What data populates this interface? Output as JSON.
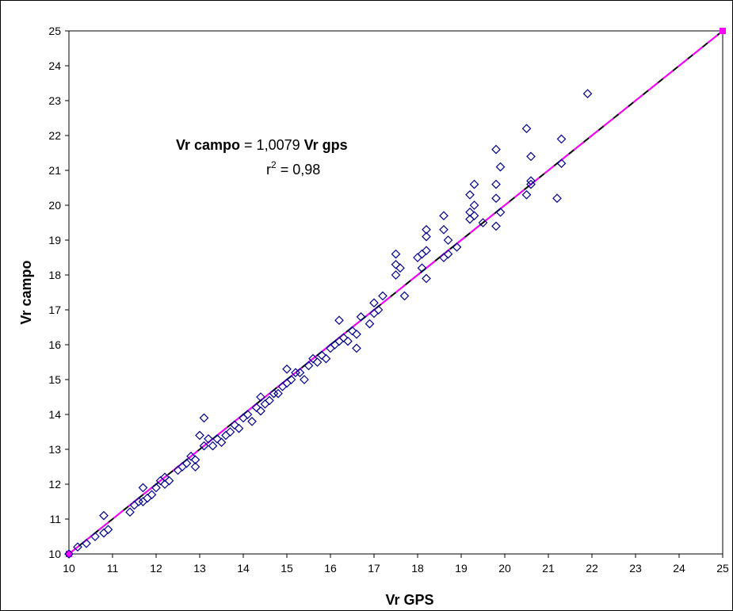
{
  "chart_data": {
    "type": "scatter",
    "xlabel": "Vr GPS",
    "ylabel": "Vr campo",
    "xlim": [
      10,
      25
    ],
    "ylim": [
      10,
      25
    ],
    "xticks": [
      10,
      11,
      12,
      13,
      14,
      15,
      16,
      17,
      18,
      19,
      20,
      21,
      22,
      23,
      24,
      25
    ],
    "yticks": [
      10,
      11,
      12,
      13,
      14,
      15,
      16,
      17,
      18,
      19,
      20,
      21,
      22,
      23,
      24,
      25
    ],
    "grid": false,
    "legend": "none",
    "annotation": {
      "line1_bold_a": "Vr campo",
      "line1_mid": " = 1,0079 ",
      "line1_bold_b": "Vr gps",
      "line2_r": "r",
      "line2_sup": "2",
      "line2_rest": " = 0,98"
    },
    "lines": [
      {
        "kind": "1:1",
        "x": [
          10,
          25
        ],
        "y": [
          10,
          25
        ],
        "color": "#000000",
        "style": "solid"
      },
      {
        "kind": "regression",
        "x": [
          10,
          25
        ],
        "y": [
          10,
          25
        ],
        "color": "#ff00ff",
        "style": "dashed",
        "markers": true
      }
    ],
    "marker_color": "#00008b",
    "points": [
      [
        10.0,
        10.0
      ],
      [
        10.2,
        10.2
      ],
      [
        10.4,
        10.3
      ],
      [
        10.6,
        10.5
      ],
      [
        10.8,
        10.6
      ],
      [
        10.8,
        11.1
      ],
      [
        10.9,
        10.7
      ],
      [
        11.4,
        11.2
      ],
      [
        11.5,
        11.4
      ],
      [
        11.6,
        11.5
      ],
      [
        11.7,
        11.9
      ],
      [
        11.7,
        11.5
      ],
      [
        11.8,
        11.6
      ],
      [
        11.9,
        11.7
      ],
      [
        12.0,
        11.9
      ],
      [
        12.1,
        12.1
      ],
      [
        12.2,
        12.2
      ],
      [
        12.2,
        12.0
      ],
      [
        12.3,
        12.1
      ],
      [
        12.5,
        12.4
      ],
      [
        12.6,
        12.5
      ],
      [
        12.7,
        12.6
      ],
      [
        12.8,
        12.8
      ],
      [
        12.9,
        12.5
      ],
      [
        12.9,
        12.7
      ],
      [
        13.0,
        13.4
      ],
      [
        13.1,
        13.9
      ],
      [
        13.1,
        13.1
      ],
      [
        13.2,
        13.3
      ],
      [
        13.3,
        13.1
      ],
      [
        13.4,
        13.3
      ],
      [
        13.5,
        13.2
      ],
      [
        13.6,
        13.4
      ],
      [
        13.7,
        13.5
      ],
      [
        13.8,
        13.7
      ],
      [
        13.9,
        13.6
      ],
      [
        14.0,
        13.9
      ],
      [
        14.1,
        14.0
      ],
      [
        14.2,
        13.8
      ],
      [
        14.3,
        14.2
      ],
      [
        14.4,
        14.5
      ],
      [
        14.4,
        14.1
      ],
      [
        14.5,
        14.3
      ],
      [
        14.6,
        14.4
      ],
      [
        14.7,
        14.6
      ],
      [
        14.8,
        14.6
      ],
      [
        14.9,
        14.8
      ],
      [
        15.0,
        14.9
      ],
      [
        15.0,
        15.3
      ],
      [
        15.1,
        15.0
      ],
      [
        15.2,
        15.2
      ],
      [
        15.3,
        15.2
      ],
      [
        15.4,
        15.0
      ],
      [
        15.5,
        15.4
      ],
      [
        15.6,
        15.6
      ],
      [
        15.7,
        15.5
      ],
      [
        15.8,
        15.7
      ],
      [
        15.9,
        15.6
      ],
      [
        16.0,
        15.9
      ],
      [
        16.1,
        16.0
      ],
      [
        16.2,
        16.1
      ],
      [
        16.2,
        16.7
      ],
      [
        16.3,
        16.2
      ],
      [
        16.4,
        16.1
      ],
      [
        16.5,
        16.4
      ],
      [
        16.6,
        15.9
      ],
      [
        16.6,
        16.3
      ],
      [
        16.7,
        16.8
      ],
      [
        16.9,
        16.6
      ],
      [
        17.0,
        16.9
      ],
      [
        17.0,
        17.2
      ],
      [
        17.1,
        17.0
      ],
      [
        17.2,
        17.4
      ],
      [
        17.5,
        18.3
      ],
      [
        17.5,
        18.6
      ],
      [
        17.5,
        18.0
      ],
      [
        17.6,
        18.2
      ],
      [
        17.7,
        17.4
      ],
      [
        18.0,
        18.5
      ],
      [
        18.1,
        18.6
      ],
      [
        18.1,
        18.2
      ],
      [
        18.2,
        19.3
      ],
      [
        18.2,
        19.1
      ],
      [
        18.2,
        18.7
      ],
      [
        18.2,
        17.9
      ],
      [
        18.6,
        19.7
      ],
      [
        18.6,
        19.3
      ],
      [
        18.6,
        18.5
      ],
      [
        18.7,
        19.0
      ],
      [
        18.7,
        18.6
      ],
      [
        18.9,
        18.8
      ],
      [
        19.2,
        20.3
      ],
      [
        19.2,
        19.8
      ],
      [
        19.2,
        19.6
      ],
      [
        19.3,
        20.6
      ],
      [
        19.3,
        20.0
      ],
      [
        19.3,
        19.7
      ],
      [
        19.5,
        19.5
      ],
      [
        19.8,
        21.6
      ],
      [
        19.8,
        20.6
      ],
      [
        19.8,
        20.2
      ],
      [
        19.8,
        19.4
      ],
      [
        19.9,
        21.1
      ],
      [
        19.9,
        19.8
      ],
      [
        20.5,
        22.2
      ],
      [
        20.5,
        20.3
      ],
      [
        20.6,
        21.4
      ],
      [
        20.6,
        20.7
      ],
      [
        20.6,
        20.6
      ],
      [
        21.2,
        20.2
      ],
      [
        21.3,
        21.9
      ],
      [
        21.3,
        21.2
      ],
      [
        21.9,
        23.2
      ]
    ]
  }
}
